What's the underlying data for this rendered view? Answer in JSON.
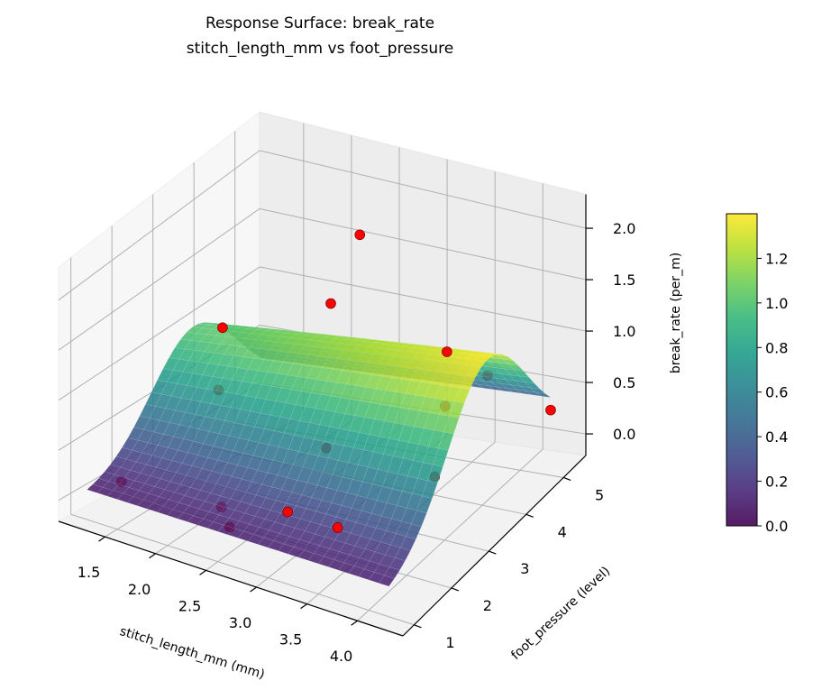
{
  "chart_data": {
    "type": "surface3d",
    "title": "Response Surface: break_rate",
    "subtitle": "stitch_length_mm vs foot_pressure",
    "xlabel": "stitch_length_mm (mm)",
    "ylabel": "foot_pressure (level)",
    "zlabel": "break_rate (per_m)",
    "xlim": [
      1.04,
      4.45
    ],
    "ylim": [
      0.7,
      5.6
    ],
    "zlim": [
      -0.21,
      2.33
    ],
    "xticks": [
      "1.5",
      "2.0",
      "2.5",
      "3.0",
      "3.5",
      "4.0"
    ],
    "yticks": [
      "1",
      "2",
      "3",
      "4",
      "5"
    ],
    "zticks": [
      "0.0",
      "0.5",
      "1.0",
      "1.5",
      "2.0"
    ],
    "surface": {
      "x_range": [
        1.2,
        4.2
      ],
      "y_range": [
        1.0,
        5.3
      ],
      "colormap": "viridis",
      "alpha": 0.85
    },
    "colorbar": {
      "range": [
        0,
        1.4
      ],
      "ticks": [
        "0.0",
        "0.2",
        "0.4",
        "0.6",
        "0.8",
        "1.0",
        "1.2"
      ]
    },
    "points_color": "#ff0000",
    "points": [
      {
        "x": 2.5,
        "y": 4.6,
        "z": 1.85
      },
      {
        "x": 1.5,
        "y": 3.6,
        "z": 1.05
      },
      {
        "x": 2.2,
        "y": 4.6,
        "z": 1.15
      },
      {
        "x": 3.4,
        "y": 4.6,
        "z": 0.95
      },
      {
        "x": 3.9,
        "y": 4.4,
        "z": 0.9
      },
      {
        "x": 3.9,
        "y": 3.0,
        "z": 0.4
      },
      {
        "x": 1.5,
        "y": 3.5,
        "z": 0.5
      },
      {
        "x": 2.8,
        "y": 3.0,
        "z": 0.4
      },
      {
        "x": 3.5,
        "y": 4.3,
        "z": 0.55
      },
      {
        "x": 4.2,
        "y": 5.3,
        "z": 0.3
      },
      {
        "x": 1.3,
        "y": 1.6,
        "z": 0.05
      },
      {
        "x": 2.3,
        "y": 1.6,
        "z": 0.1
      },
      {
        "x": 2.5,
        "y": 1.3,
        "z": 0.05
      },
      {
        "x": 3.0,
        "y": 1.5,
        "z": 0.3
      },
      {
        "x": 3.5,
        "y": 1.5,
        "z": 0.3
      }
    ]
  }
}
